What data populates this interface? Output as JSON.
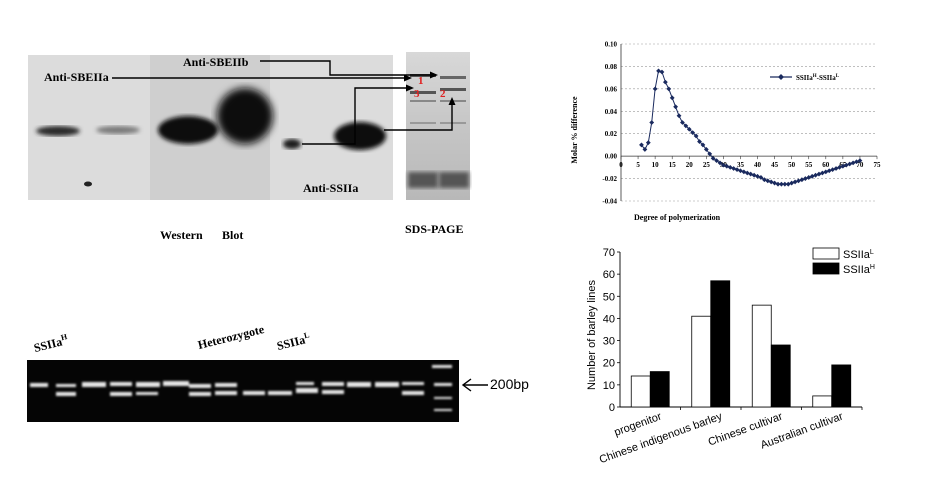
{
  "western_panel": {
    "anti_sbeiia": "Anti-SBEIIa",
    "anti_sbeiib": "Anti-SBEIIb",
    "anti_ssiia": "Anti-SSIIa",
    "caption_western": "Western",
    "caption_blot": "Blot",
    "caption_sds": "SDS-PAGE",
    "band_1": "1",
    "band_2": "2",
    "band_3": "3"
  },
  "pcr_panel": {
    "label_h": "SSIIa",
    "label_h_sup": "H",
    "label_het": "Heterozygote",
    "label_l": "SSIIa",
    "label_l_sup": "L",
    "marker_label": "200bp"
  },
  "chart_data": [
    {
      "type": "line",
      "title": "",
      "xlabel": "Degree of polymerization",
      "ylabel": "Molar % difference",
      "xlim": [
        0,
        75
      ],
      "ylim": [
        -0.04,
        0.1
      ],
      "xticks": [
        0,
        5,
        10,
        15,
        20,
        25,
        30,
        35,
        40,
        45,
        50,
        55,
        60,
        65,
        70,
        75
      ],
      "yticks": [
        -0.04,
        -0.02,
        0.0,
        0.02,
        0.04,
        0.06,
        0.08,
        0.1
      ],
      "grid": "horizontal dashed",
      "legend_position": "top-right",
      "series": [
        {
          "name": "SSIIa",
          "name_sup1": "H",
          "name_mid": "-SSIIa",
          "name_sup2": "L",
          "x": [
            6,
            7,
            8,
            9,
            10,
            11,
            12,
            13,
            14,
            15,
            16,
            17,
            18,
            19,
            20,
            21,
            22,
            23,
            24,
            25,
            26,
            27,
            28,
            29,
            30,
            31,
            32,
            33,
            34,
            35,
            36,
            37,
            38,
            39,
            40,
            41,
            42,
            43,
            44,
            45,
            46,
            47,
            48,
            49,
            50,
            51,
            52,
            53,
            54,
            55,
            56,
            57,
            58,
            59,
            60,
            61,
            62,
            63,
            64,
            65,
            66,
            67,
            68,
            69,
            70
          ],
          "values": [
            0.01,
            0.006,
            0.012,
            0.03,
            0.06,
            0.076,
            0.075,
            0.066,
            0.06,
            0.052,
            0.044,
            0.036,
            0.03,
            0.027,
            0.024,
            0.021,
            0.018,
            0.013,
            0.01,
            0.006,
            0.002,
            -0.002,
            -0.004,
            -0.006,
            -0.008,
            -0.009,
            -0.01,
            -0.011,
            -0.012,
            -0.013,
            -0.014,
            -0.015,
            -0.016,
            -0.017,
            -0.018,
            -0.019,
            -0.021,
            -0.022,
            -0.023,
            -0.024,
            -0.025,
            -0.025,
            -0.025,
            -0.025,
            -0.024,
            -0.023,
            -0.022,
            -0.021,
            -0.02,
            -0.019,
            -0.018,
            -0.017,
            -0.016,
            -0.015,
            -0.014,
            -0.013,
            -0.012,
            -0.011,
            -0.01,
            -0.009,
            -0.008,
            -0.007,
            -0.006,
            -0.005,
            -0.004
          ]
        }
      ]
    },
    {
      "type": "bar",
      "title": "",
      "xlabel": "",
      "ylabel": "Number of barley lines",
      "ylim": [
        0,
        70
      ],
      "yticks": [
        0,
        10,
        20,
        30,
        40,
        50,
        60,
        70
      ],
      "legend_position": "top-right",
      "categories": [
        "progenitor",
        "Chinese  indigenous barley",
        "Chinese  cultivar",
        "Australian cultivar"
      ],
      "series": [
        {
          "name": "SSIIa",
          "sup": "L",
          "color": "#ffffff",
          "values": [
            14,
            41,
            46,
            5
          ]
        },
        {
          "name": "SSIIa",
          "sup": "H",
          "color": "#000000",
          "values": [
            16,
            57,
            28,
            19
          ]
        }
      ]
    }
  ]
}
